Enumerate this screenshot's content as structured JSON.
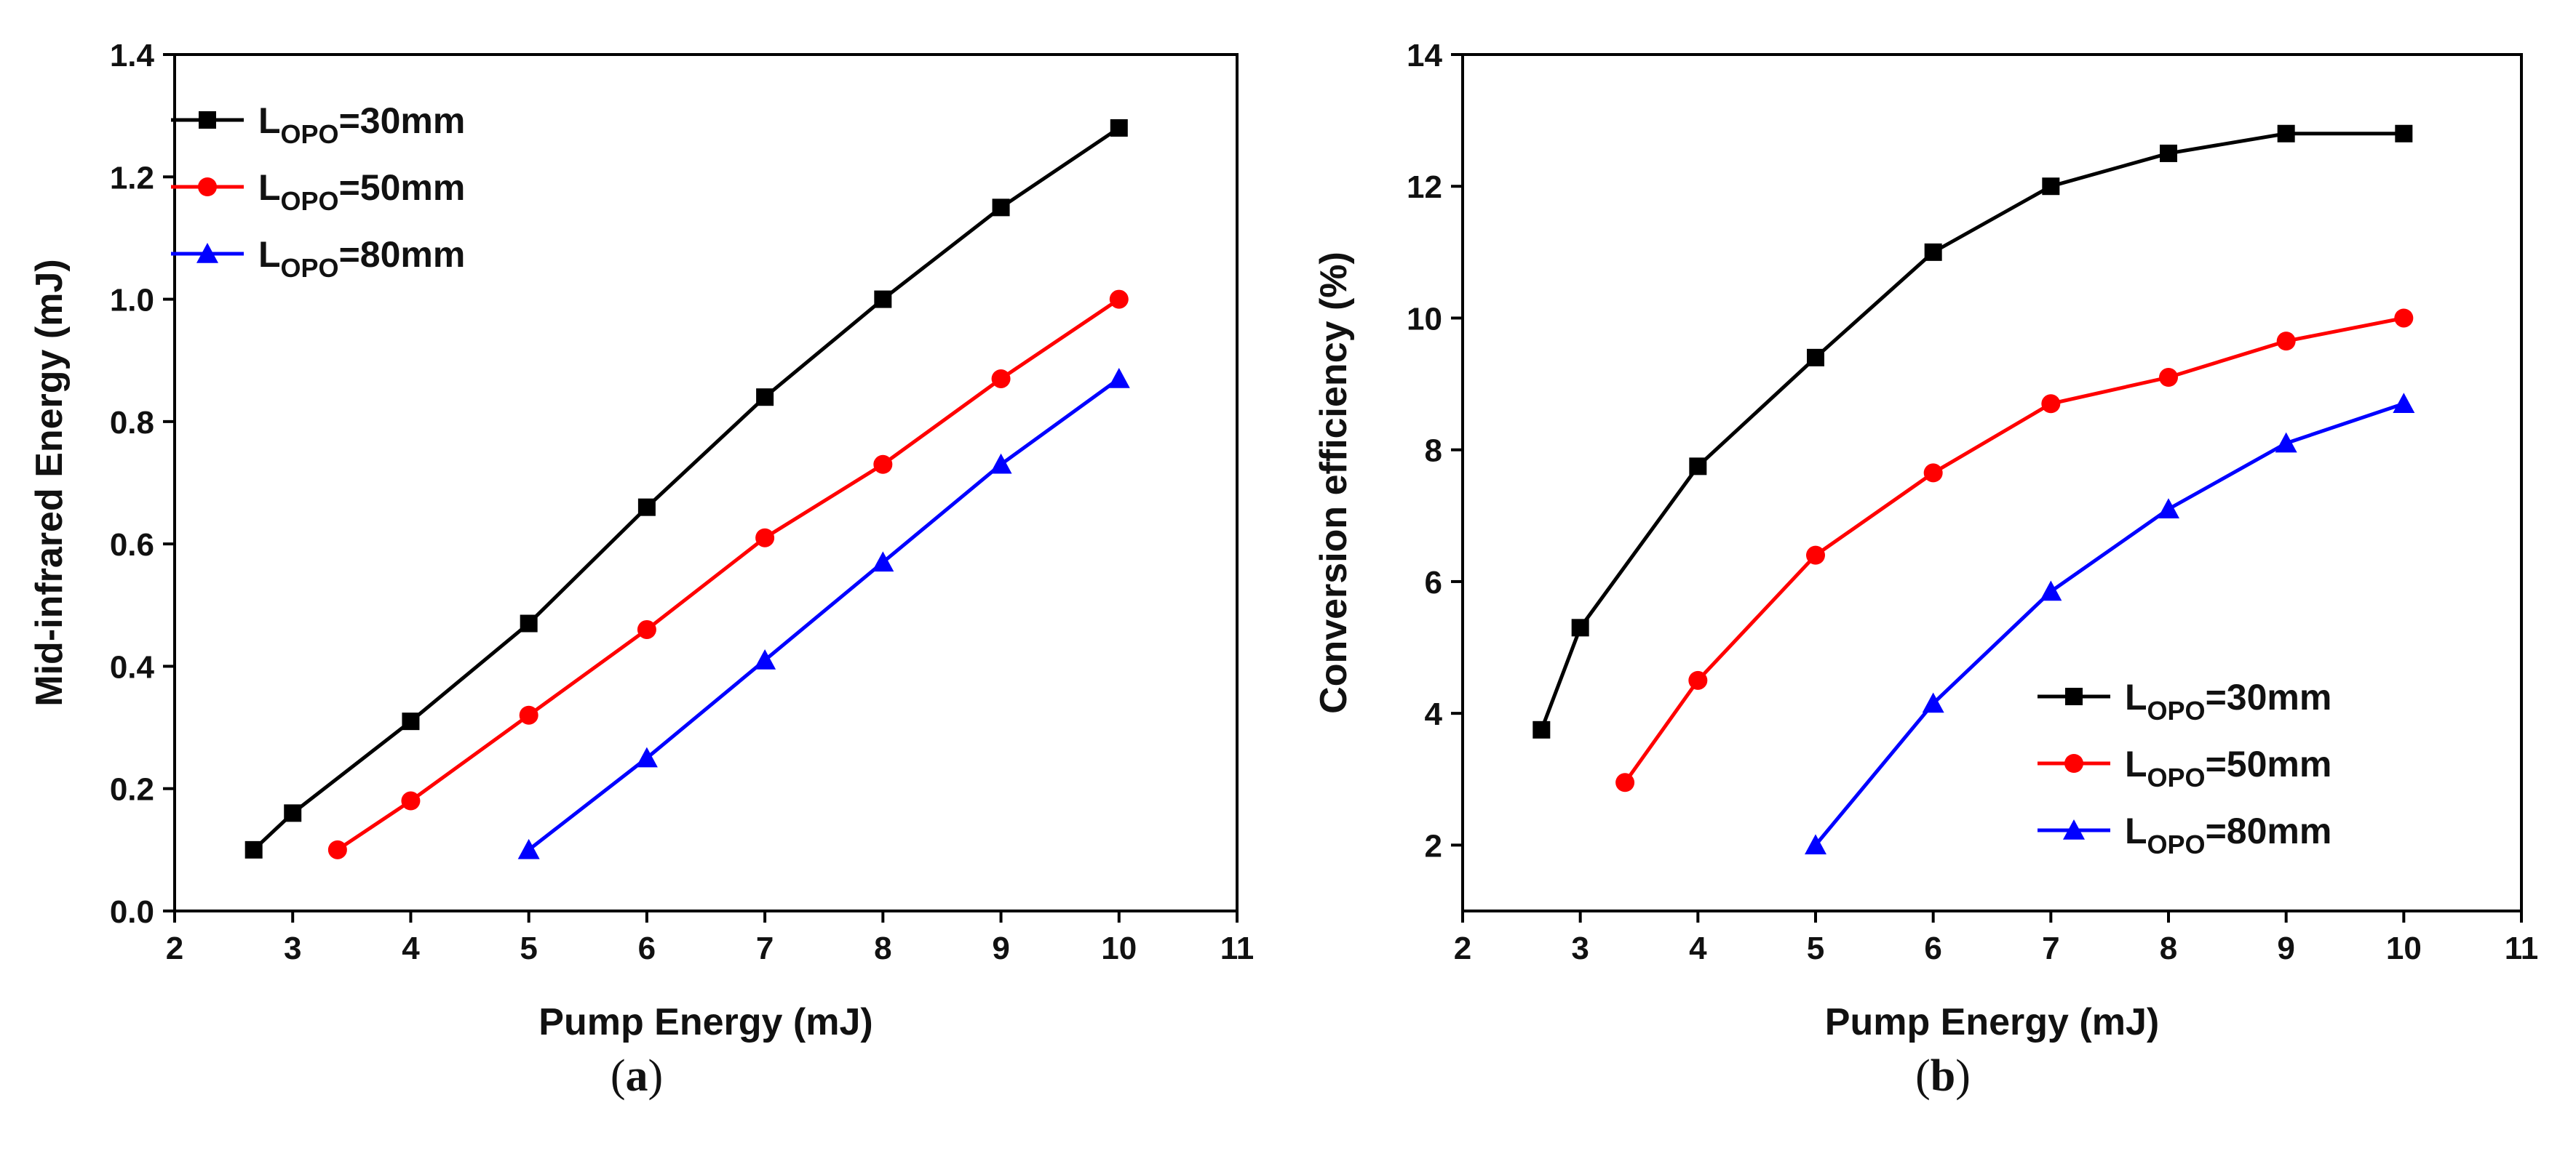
{
  "chart_data": [
    {
      "type": "line",
      "panel_label": "a",
      "xlabel": "Pump Energy (mJ)",
      "ylabel": "Mid-infrared Energy (mJ)",
      "xlim": [
        2,
        11
      ],
      "ylim": [
        0.0,
        1.4
      ],
      "xticks": [
        "2",
        "3",
        "4",
        "5",
        "6",
        "7",
        "8",
        "9",
        "10",
        "11"
      ],
      "yticks": [
        "0.0",
        "0.2",
        "0.4",
        "0.6",
        "0.8",
        "1.0",
        "1.2",
        "1.4"
      ],
      "grid": false,
      "legend_position": "top-left",
      "series": [
        {
          "name": "L",
          "name_sub": "OPO",
          "name_suffix": "=30mm",
          "color": "#000000",
          "marker": "square",
          "x": [
            2.67,
            3,
            4,
            5,
            6,
            7,
            8,
            9,
            10
          ],
          "y": [
            0.1,
            0.16,
            0.31,
            0.47,
            0.66,
            0.84,
            1.0,
            1.15,
            1.28
          ]
        },
        {
          "name": "L",
          "name_sub": "OPO",
          "name_suffix": "=50mm",
          "color": "#ff0000",
          "marker": "circle",
          "x": [
            3.38,
            4,
            5,
            6,
            7,
            8,
            9,
            10
          ],
          "y": [
            0.1,
            0.18,
            0.32,
            0.46,
            0.61,
            0.73,
            0.87,
            1.0
          ]
        },
        {
          "name": "L",
          "name_sub": "OPO",
          "name_suffix": "=80mm",
          "color": "#0000ff",
          "marker": "triangle",
          "x": [
            5,
            6,
            7,
            8,
            9,
            10
          ],
          "y": [
            0.1,
            0.25,
            0.41,
            0.57,
            0.73,
            0.87
          ]
        }
      ]
    },
    {
      "type": "line",
      "panel_label": "b",
      "xlabel": "Pump Energy (mJ)",
      "ylabel": "Conversion efficiency (%)",
      "xlim": [
        2,
        11
      ],
      "ylim": [
        1,
        14
      ],
      "xticks": [
        "2",
        "3",
        "4",
        "5",
        "6",
        "7",
        "8",
        "9",
        "10",
        "11"
      ],
      "yticks": [
        "2",
        "4",
        "6",
        "8",
        "10",
        "12",
        "14"
      ],
      "ytick_values": [
        2,
        4,
        6,
        8,
        10,
        12,
        14
      ],
      "grid": false,
      "legend_position": "bottom-right",
      "series": [
        {
          "name": "L",
          "name_sub": "OPO",
          "name_suffix": "=30mm",
          "color": "#000000",
          "marker": "square",
          "x": [
            2.67,
            3,
            4,
            5,
            6,
            7,
            8,
            9,
            10
          ],
          "y": [
            3.75,
            5.3,
            7.75,
            9.4,
            11.0,
            12.0,
            12.5,
            12.8,
            12.8
          ]
        },
        {
          "name": "L",
          "name_sub": "OPO",
          "name_suffix": "=50mm",
          "color": "#ff0000",
          "marker": "circle",
          "x": [
            3.38,
            4,
            5,
            6,
            7,
            8,
            9,
            10
          ],
          "y": [
            2.95,
            4.5,
            6.4,
            7.65,
            8.7,
            9.1,
            9.65,
            10.0
          ]
        },
        {
          "name": "L",
          "name_sub": "OPO",
          "name_suffix": "=80mm",
          "color": "#0000ff",
          "marker": "triangle",
          "x": [
            5,
            6,
            7,
            8,
            9,
            10
          ],
          "y": [
            2.0,
            4.15,
            5.85,
            7.1,
            8.1,
            8.7
          ]
        }
      ]
    }
  ]
}
